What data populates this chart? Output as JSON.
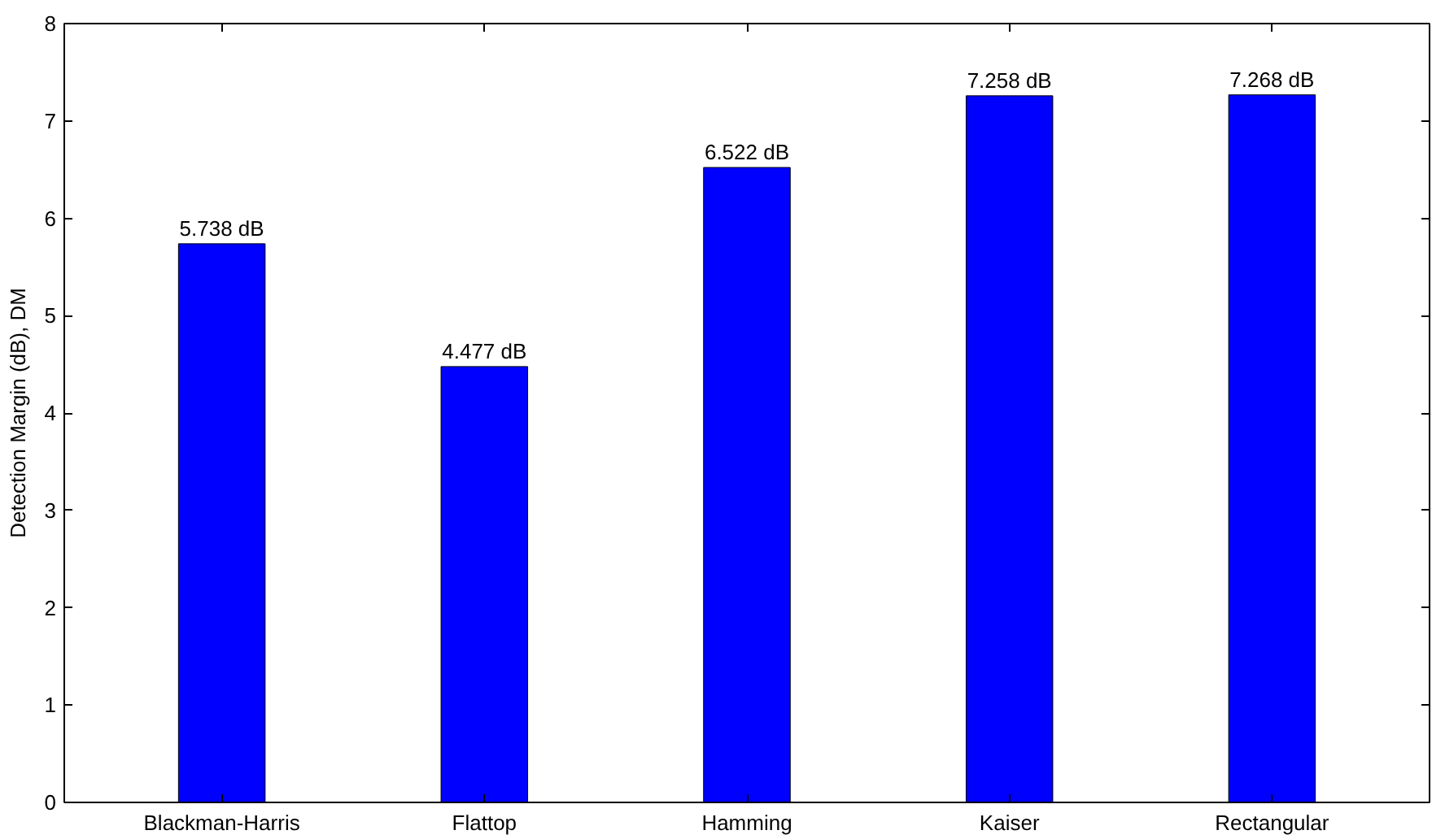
{
  "chart_data": {
    "type": "bar",
    "ylabel": "Detection Margin (dB), DM",
    "categories": [
      "Blackman-Harris",
      "Flattop",
      "Hamming",
      "Kaiser",
      "Rectangular"
    ],
    "values": [
      5.738,
      4.477,
      6.522,
      7.258,
      7.268
    ],
    "value_labels": [
      "5.738 dB",
      "4.477 dB",
      "6.522 dB",
      "7.258 dB",
      "7.268 dB"
    ],
    "color": "#0000ff",
    "ylim": [
      0,
      8
    ],
    "yticks": [
      0,
      1,
      2,
      3,
      4,
      5,
      6,
      7,
      8
    ],
    "grid": false
  }
}
